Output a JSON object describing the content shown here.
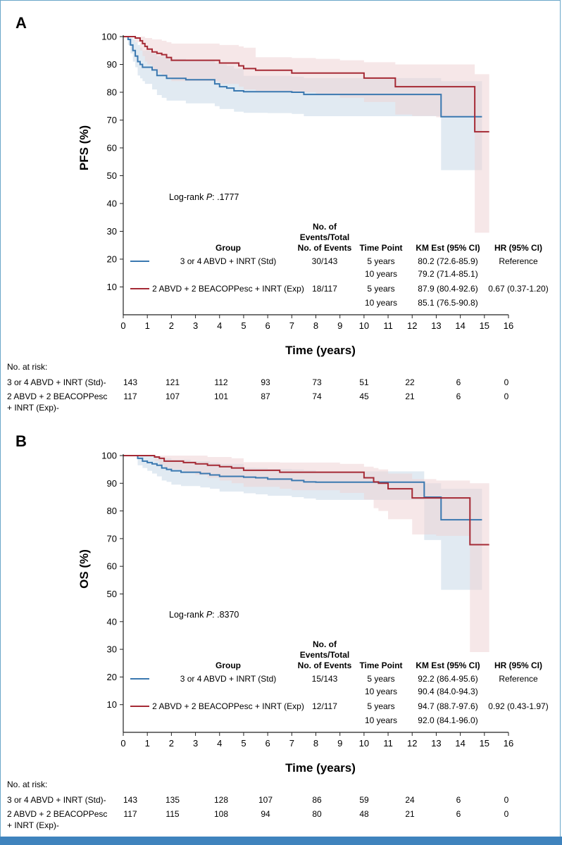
{
  "chart_data": [
    {
      "type": "line",
      "panel_label": "A",
      "ylabel": "PFS (%)",
      "xlabel": "Time (years)",
      "xlim": [
        0,
        16
      ],
      "ylim": [
        0,
        100
      ],
      "x_ticks": [
        "0",
        "1",
        "2",
        "3",
        "4",
        "5",
        "6",
        "7",
        "8",
        "9",
        "10",
        "11",
        "12",
        "13",
        "14",
        "15",
        "16"
      ],
      "y_ticks": [
        "10",
        "20",
        "30",
        "40",
        "50",
        "60",
        "70",
        "80",
        "90",
        "100"
      ],
      "logrank_prefix": "Log-rank ",
      "logrank_p": "P",
      "logrank_value": ": .1777",
      "table": {
        "header_group": "Group",
        "header_events_1": "No. of",
        "header_events_2": "Events/Total",
        "header_events_3": "No. of Events",
        "header_timepoint": "Time Point",
        "header_km": "KM Est (95% CI)",
        "header_hr": "HR (95% CI)",
        "rows": [
          {
            "group": "3 or 4 ABVD + INRT (Std)",
            "events": "30/143",
            "tp1": "5 years",
            "km1": "80.2 (72.6-85.9)",
            "tp2": "10 years",
            "km2": "79.2 (71.4-85.1)",
            "hr": "Reference"
          },
          {
            "group": "2 ABVD + 2 BEACOPPesc + INRT (Exp)",
            "events": "18/117",
            "tp1": "5 years",
            "km1": "87.9 (80.4-92.6)",
            "tp2": "10 years",
            "km2": "85.1 (76.5-90.8)",
            "hr": "0.67 (0.37-1.20)"
          }
        ]
      },
      "risk_title": "No. at risk:",
      "risk_rows": [
        {
          "label": "3 or 4 ABVD + INRT (Std)-",
          "values": [
            "143",
            "121",
            "112",
            "93",
            "73",
            "51",
            "22",
            "6",
            "0"
          ]
        },
        {
          "label": "2 ABVD + 2 BEACOPPesc",
          "label2": "+ INRT (Exp)-",
          "values": [
            "117",
            "107",
            "101",
            "87",
            "74",
            "45",
            "21",
            "6",
            "0"
          ]
        }
      ],
      "series": [
        {
          "name": "3 or 4 ABVD + INRT (Std)",
          "color": "#3a78b0",
          "band_color": "#c9d8e8",
          "x": [
            0,
            0.2,
            0.3,
            0.4,
            0.5,
            0.6,
            0.7,
            0.8,
            0.9,
            1.0,
            1.2,
            1.4,
            1.6,
            1.8,
            2.0,
            2.3,
            2.6,
            3.0,
            3.5,
            3.8,
            4.0,
            4.3,
            4.6,
            5.0,
            6.0,
            7.0,
            7.5,
            8.0,
            9.0,
            10.0,
            12.0,
            13.2,
            14.0,
            14.5,
            14.9
          ],
          "y": [
            100,
            99,
            97,
            95,
            93,
            91,
            90,
            89,
            89,
            89,
            88,
            86,
            86,
            85,
            85,
            85,
            84.5,
            84.5,
            84.5,
            83,
            82,
            81.5,
            80.5,
            80.2,
            80.2,
            80,
            79.2,
            79.2,
            79.2,
            79.2,
            79.2,
            71.2,
            71.2,
            71.2,
            71.2
          ],
          "band_low": [
            100,
            97,
            94,
            91,
            89,
            86,
            85,
            84,
            83,
            83,
            81,
            79,
            78,
            77,
            77,
            77,
            76,
            76,
            76,
            75,
            74,
            74,
            73,
            72.6,
            72.5,
            72.2,
            71.4,
            71.4,
            71.4,
            71.4,
            71.4,
            52,
            52,
            52,
            52
          ],
          "band_high": [
            100,
            100,
            99.5,
            99,
            98,
            97,
            96,
            95,
            95,
            95,
            94,
            93,
            93,
            92.5,
            92,
            92,
            91.5,
            91.5,
            91.5,
            90.5,
            90,
            89.5,
            88.5,
            85.9,
            85.9,
            85.6,
            85.1,
            85.1,
            85.1,
            85.1,
            85.1,
            84,
            84,
            84,
            84
          ]
        },
        {
          "name": "2 ABVD + 2 BEACOPPesc + INRT (Exp)",
          "color": "#a52a35",
          "band_color": "#eed3d6",
          "x": [
            0,
            0.5,
            0.7,
            0.8,
            0.9,
            1.0,
            1.2,
            1.4,
            1.6,
            1.8,
            2.0,
            3.0,
            4.0,
            4.8,
            5.0,
            5.5,
            6.0,
            7.0,
            8.0,
            9.0,
            10.0,
            11.3,
            12.0,
            13.0,
            14.3,
            14.6,
            15.2
          ],
          "y": [
            100,
            99.5,
            98.5,
            97.5,
            96.5,
            95.5,
            94.5,
            94,
            93.5,
            92.5,
            91.5,
            91.5,
            90.5,
            89.5,
            88.5,
            87.9,
            87.9,
            86.9,
            86.9,
            86.9,
            85.1,
            82,
            82,
            82,
            82,
            65.8,
            65.8
          ],
          "band_low": [
            100,
            98,
            95,
            93,
            91,
            90,
            88,
            87,
            86,
            85,
            84,
            84,
            83,
            82,
            81,
            80.4,
            80.4,
            80,
            79,
            78,
            76.5,
            72,
            71.5,
            71,
            71,
            29.5,
            29.5
          ],
          "band_high": [
            100,
            100,
            100,
            100,
            99.5,
            99.5,
            99,
            99,
            98.5,
            98,
            97.5,
            97.5,
            97,
            96.5,
            96,
            92.6,
            92.6,
            92.3,
            92,
            91.5,
            90.8,
            90,
            90,
            90,
            90,
            86.5,
            86.5
          ]
        }
      ]
    },
    {
      "type": "line",
      "panel_label": "B",
      "ylabel": "OS (%)",
      "xlabel": "Time (years)",
      "xlim": [
        0,
        16
      ],
      "ylim": [
        0,
        100
      ],
      "x_ticks": [
        "0",
        "1",
        "2",
        "3",
        "4",
        "5",
        "6",
        "7",
        "8",
        "9",
        "10",
        "11",
        "12",
        "13",
        "14",
        "15",
        "16"
      ],
      "y_ticks": [
        "10",
        "20",
        "30",
        "40",
        "50",
        "60",
        "70",
        "80",
        "90",
        "100"
      ],
      "logrank_prefix": "Log-rank ",
      "logrank_p": "P",
      "logrank_value": ": .8370",
      "table": {
        "header_group": "Group",
        "header_events_1": "No. of",
        "header_events_2": "Events/Total",
        "header_events_3": "No. of Events",
        "header_timepoint": "Time Point",
        "header_km": "KM Est (95% CI)",
        "header_hr": "HR (95% CI)",
        "rows": [
          {
            "group": "3 or 4 ABVD + INRT (Std)",
            "events": "15/143",
            "tp1": "5 years",
            "km1": "92.2 (86.4-95.6)",
            "tp2": "10 years",
            "km2": "90.4 (84.0-94.3)",
            "hr": "Reference"
          },
          {
            "group": "2 ABVD + 2 BEACOPPesc + INRT (Exp)",
            "events": "12/117",
            "tp1": "5 years",
            "km1": "94.7 (88.7-97.6)",
            "tp2": "10 years",
            "km2": "92.0 (84.1-96.0)",
            "hr": "0.92 (0.43-1.97)"
          }
        ]
      },
      "risk_title": "No. at risk:",
      "risk_rows": [
        {
          "label": "3 or 4 ABVD + INRT (Std)-",
          "values": [
            "143",
            "135",
            "128",
            "107",
            "86",
            "59",
            "24",
            "6",
            "0"
          ]
        },
        {
          "label": "2 ABVD + 2 BEACOPPesc",
          "label2": "+ INRT (Exp)-",
          "values": [
            "117",
            "115",
            "108",
            "94",
            "80",
            "48",
            "21",
            "6",
            "0"
          ]
        }
      ],
      "series": [
        {
          "name": "3 or 4 ABVD + INRT (Std)",
          "color": "#3a78b0",
          "band_color": "#c9d8e8",
          "x": [
            0,
            0.6,
            0.8,
            1.0,
            1.2,
            1.4,
            1.6,
            1.8,
            2.0,
            2.4,
            2.8,
            3.2,
            3.6,
            4.0,
            5.0,
            5.5,
            6.0,
            7.0,
            7.5,
            8.0,
            9.0,
            10.0,
            12.0,
            12.5,
            13.0,
            13.2,
            14.0,
            14.9
          ],
          "y": [
            100,
            99,
            98,
            97.5,
            97,
            96.5,
            95.5,
            95,
            94.5,
            94,
            94,
            93.5,
            93,
            92.5,
            92.2,
            92,
            91.5,
            91,
            90.5,
            90.4,
            90.4,
            90.4,
            90.4,
            85,
            85,
            76.8,
            76.8,
            76.8
          ],
          "band_low": [
            100,
            96.5,
            95.5,
            94.5,
            93.5,
            92.5,
            91,
            90.5,
            89.5,
            89,
            89,
            88.5,
            88,
            87,
            86.4,
            86,
            85.5,
            85,
            84.5,
            84,
            84,
            84,
            84,
            69.5,
            69.5,
            51.5,
            51.5,
            51.5
          ],
          "band_high": [
            100,
            100,
            100,
            100,
            100,
            99.5,
            99,
            99,
            98.5,
            98.5,
            98,
            98,
            97.5,
            97,
            95.6,
            95.5,
            95.2,
            95,
            94.7,
            94.3,
            94.3,
            94.3,
            94.3,
            90,
            90,
            88,
            88,
            88
          ]
        },
        {
          "name": "2 ABVD + 2 BEACOPPesc + INRT (Exp)",
          "color": "#a52a35",
          "band_color": "#eed3d6",
          "x": [
            0,
            1.3,
            1.5,
            1.7,
            2.0,
            2.5,
            3.0,
            3.5,
            4.0,
            4.5,
            5.0,
            6.0,
            6.5,
            7.0,
            8.0,
            9.0,
            10.0,
            10.4,
            10.6,
            11.0,
            11.5,
            12.0,
            13.0,
            14.0,
            14.4,
            15.2
          ],
          "y": [
            100,
            99.5,
            99,
            98,
            98,
            97.5,
            97,
            96.5,
            96,
            95.5,
            94.7,
            94.7,
            94,
            94,
            94,
            94,
            92,
            90.5,
            90,
            88,
            88,
            84.7,
            84.7,
            84.7,
            67.8,
            67.8
          ],
          "band_low": [
            100,
            98,
            96.5,
            95.5,
            95,
            94,
            93,
            92,
            91,
            90,
            88.7,
            88.7,
            88,
            87.5,
            87.5,
            86.5,
            84.1,
            81,
            80,
            77,
            77,
            71.5,
            71,
            71,
            29,
            29
          ],
          "band_high": [
            100,
            100,
            100,
            100,
            100,
            100,
            100,
            99.5,
            99.5,
            99,
            97.6,
            97.6,
            97.5,
            97.5,
            97.5,
            97,
            96,
            95.5,
            95,
            93.5,
            93.5,
            91.5,
            91,
            91,
            90,
            90
          ]
        }
      ]
    }
  ]
}
